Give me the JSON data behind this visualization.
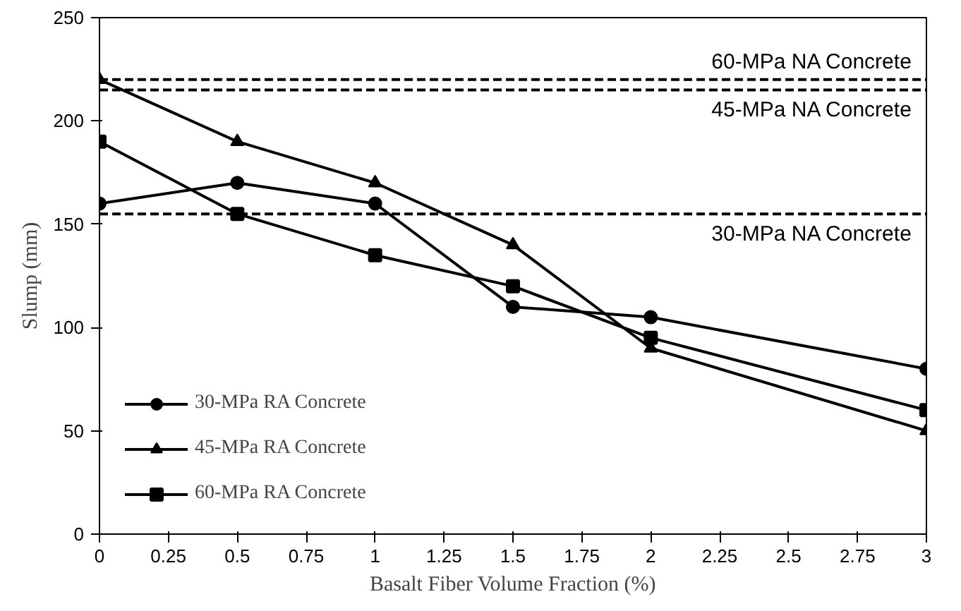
{
  "chart_data": {
    "type": "line",
    "xlabel": "Basalt Fiber Volume Fraction (%)",
    "ylabel": "Slump (mm)",
    "x": [
      0,
      0.5,
      1,
      1.5,
      2,
      3
    ],
    "series": [
      {
        "name": "30-MPa RA Concrete",
        "color": "#000000",
        "marker": "circle",
        "values": [
          160,
          170,
          160,
          110,
          105,
          80
        ]
      },
      {
        "name": "45-MPa RA Concrete",
        "color": "#000000",
        "marker": "triangle",
        "values": [
          220,
          190,
          170,
          140,
          90,
          50
        ]
      },
      {
        "name": "60-MPa RA Concrete",
        "color": "#000000",
        "marker": "cross",
        "values": [
          190,
          155,
          135,
          120,
          95,
          60
        ]
      }
    ],
    "ref_lines": [
      {
        "axis": "y",
        "value": 220,
        "label": "60-MPa NA Concrete",
        "color": "#000000",
        "line_style": "dashed"
      },
      {
        "axis": "y",
        "value": 215,
        "label": "45-MPa NA Concrete",
        "color": "#000000",
        "line_style": "dashed"
      },
      {
        "axis": "y",
        "value": 155,
        "label": "30-MPa NA Concrete",
        "color": "#000000",
        "line_style": "dashed"
      }
    ],
    "xlim": [
      0,
      3
    ],
    "xticks": [
      0,
      0.25,
      0.5,
      0.75,
      1,
      1.25,
      1.5,
      1.75,
      2,
      2.25,
      2.5,
      2.75,
      3
    ],
    "ylim": [
      0,
      250
    ],
    "yticks": [
      0,
      50,
      100,
      150,
      200,
      250
    ],
    "grid": false,
    "legend": "bottom left",
    "line_style": "solid"
  }
}
